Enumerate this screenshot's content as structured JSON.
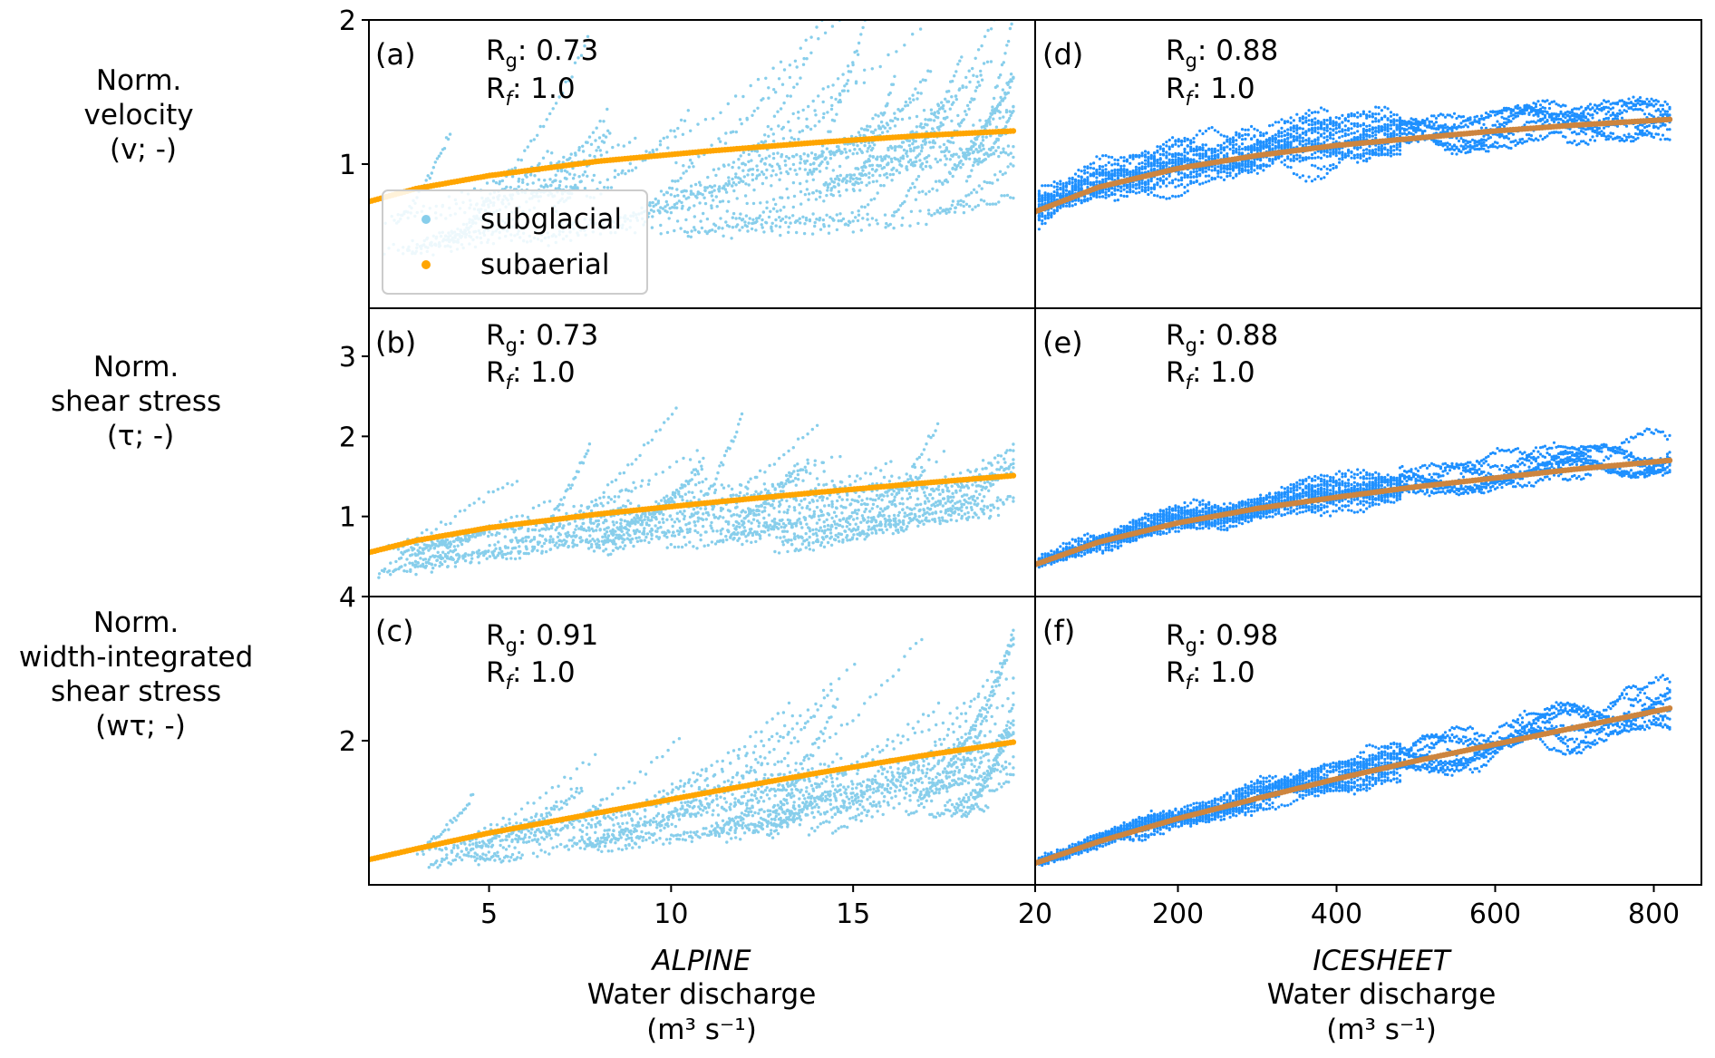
{
  "chart_data": {
    "type": "scatter",
    "colors": {
      "subglacial_alpine": "#87ceeb",
      "subglacial_icesheet": "#1e90ff",
      "subaerial_alpine": "#ffa500",
      "subaerial_icesheet": "#cd853f"
    },
    "legend": {
      "location": "upper-left of panel (a)",
      "entries": [
        {
          "label": "subglacial",
          "color": "#87ceeb"
        },
        {
          "label": "subaerial",
          "color": "#ffa500"
        }
      ]
    },
    "rows": [
      {
        "label_lines": [
          "Norm.",
          "velocity",
          "(v; -)"
        ],
        "ylim": [
          0.0,
          2.0
        ],
        "yticks": [
          1,
          2
        ]
      },
      {
        "label_lines": [
          "Norm.",
          "shear stress",
          "(τ; -)"
        ],
        "ylim": [
          0.0,
          3.6
        ],
        "yticks": [
          1,
          2,
          3
        ]
      },
      {
        "label_lines": [
          "Norm.",
          "width-integrated",
          "shear stress",
          "(wτ; -)"
        ],
        "ylim": [
          0.0,
          4.0
        ],
        "yticks": [
          2,
          4
        ]
      }
    ],
    "columns": [
      {
        "title": "ALPINE",
        "xlabel": "Water discharge",
        "xunits": "(m³ s⁻¹)",
        "xlim": [
          1.7,
          20.0
        ],
        "xticks": [
          5,
          10,
          15,
          20
        ]
      },
      {
        "title": "ICESHEET",
        "xlabel": "Water discharge",
        "xunits": "(m³ s⁻¹)",
        "xlim": [
          20,
          860
        ],
        "xticks": [
          200,
          400,
          600,
          800
        ]
      }
    ],
    "panels": [
      {
        "id": "(a)",
        "row": 0,
        "col": 0,
        "rg_label": "R",
        "rg_sub": "g",
        "rg_value": ": 0.73",
        "rf_label": "R",
        "rf_sub": "f",
        "rf_value": ": 1.0",
        "subaerial_curve": {
          "x": [
            1.7,
            3,
            5,
            8,
            11,
            14,
            17,
            19.4
          ],
          "y": [
            0.74,
            0.83,
            0.92,
            1.02,
            1.09,
            1.15,
            1.2,
            1.23
          ]
        }
      },
      {
        "id": "(b)",
        "row": 1,
        "col": 0,
        "rg_label": "R",
        "rg_sub": "g",
        "rg_value": ": 0.73",
        "rf_label": "R",
        "rf_sub": "f",
        "rf_value": ": 1.0",
        "subaerial_curve": {
          "x": [
            1.7,
            3,
            5,
            8,
            11,
            14,
            17,
            19.4
          ],
          "y": [
            0.55,
            0.7,
            0.86,
            1.03,
            1.17,
            1.3,
            1.42,
            1.51
          ]
        }
      },
      {
        "id": "(c)",
        "row": 2,
        "col": 0,
        "rg_label": "R",
        "rg_sub": "g",
        "rg_value": ": 0.91",
        "rf_label": "R",
        "rf_sub": "f",
        "rf_value": ": 1.0",
        "subaerial_curve": {
          "x": [
            1.7,
            3,
            5,
            8,
            11,
            14,
            17,
            19.4
          ],
          "y": [
            0.35,
            0.5,
            0.72,
            1.0,
            1.28,
            1.55,
            1.8,
            1.98
          ]
        }
      },
      {
        "id": "(d)",
        "row": 0,
        "col": 1,
        "rg_label": "R",
        "rg_sub": "g",
        "rg_value": ": 0.88",
        "rf_label": "R",
        "rf_sub": "f",
        "rf_value": ": 1.0",
        "subaerial_curve": {
          "x": [
            20,
            100,
            200,
            300,
            400,
            500,
            600,
            700,
            820
          ],
          "y": [
            0.67,
            0.84,
            0.97,
            1.06,
            1.13,
            1.18,
            1.23,
            1.27,
            1.31
          ]
        }
      },
      {
        "id": "(e)",
        "row": 1,
        "col": 1,
        "rg_label": "R",
        "rg_sub": "g",
        "rg_value": ": 0.88",
        "rf_label": "R",
        "rf_sub": "f",
        "rf_value": ": 1.0",
        "subaerial_curve": {
          "x": [
            20,
            100,
            200,
            300,
            400,
            500,
            600,
            700,
            820
          ],
          "y": [
            0.4,
            0.68,
            0.92,
            1.1,
            1.24,
            1.37,
            1.48,
            1.59,
            1.7
          ]
        }
      },
      {
        "id": "(f)",
        "row": 2,
        "col": 1,
        "rg_label": "R",
        "rg_sub": "g",
        "rg_value": ": 0.98",
        "rf_label": "R",
        "rf_sub": "f",
        "rf_value": ": 1.0",
        "subaerial_curve": {
          "x": [
            20,
            100,
            200,
            300,
            400,
            500,
            600,
            700,
            820
          ],
          "y": [
            0.3,
            0.6,
            0.92,
            1.2,
            1.47,
            1.72,
            1.95,
            2.18,
            2.45
          ]
        }
      }
    ]
  }
}
